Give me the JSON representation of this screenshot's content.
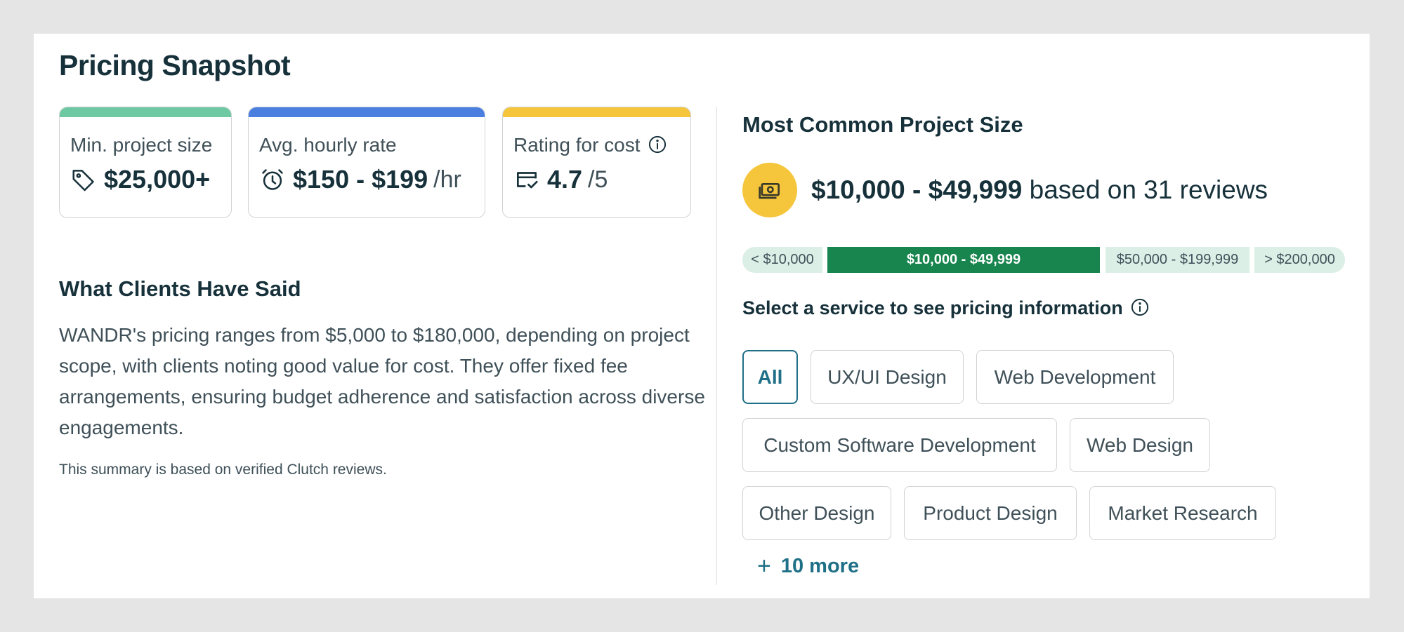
{
  "page_title": "Pricing Snapshot",
  "cards": {
    "min_project": {
      "label": "Min. project size",
      "value": "$25,000+",
      "icon": "tag-icon",
      "accent": "#6cc9a2"
    },
    "hourly": {
      "label": "Avg. hourly rate",
      "value": "$150 - $199",
      "unit": "/hr",
      "icon": "alarm-clock-icon",
      "accent": "#4a7fe0"
    },
    "rating": {
      "label": "Rating for cost",
      "value": "4.7",
      "unit": "/5",
      "icon": "wallet-check-icon",
      "accent": "#f5c53c"
    }
  },
  "clients": {
    "heading": "What Clients Have Said",
    "summary": "WANDR's pricing ranges from $5,000 to $180,000, depending on project scope, with clients noting good value for cost. They offer fixed fee arrangements, ensuring budget adherence and satisfaction across diverse engagements.",
    "note": "This summary is based on verified Clutch reviews."
  },
  "project_size": {
    "heading": "Most Common Project Size",
    "range": "$10,000 - $49,999",
    "suffix": "based on 31 reviews",
    "icon": "money-icon",
    "segments": [
      "< $10,000",
      "$10,000 - $49,999",
      "$50,000 - $199,999",
      "> $200,000"
    ],
    "active_segment": 1
  },
  "services": {
    "heading": "Select a service to see pricing information",
    "chips": [
      "All",
      "UX/UI Design",
      "Web Development",
      "Custom Software Development",
      "Web Design",
      "Other Design",
      "Product Design",
      "Market Research"
    ],
    "active_chip": 0,
    "more_label": "10 more"
  },
  "colors": {
    "primary_text": "#17313b",
    "link": "#1f6f87",
    "active_segment": "#17854d",
    "segment_bg": "#dcefe6"
  }
}
